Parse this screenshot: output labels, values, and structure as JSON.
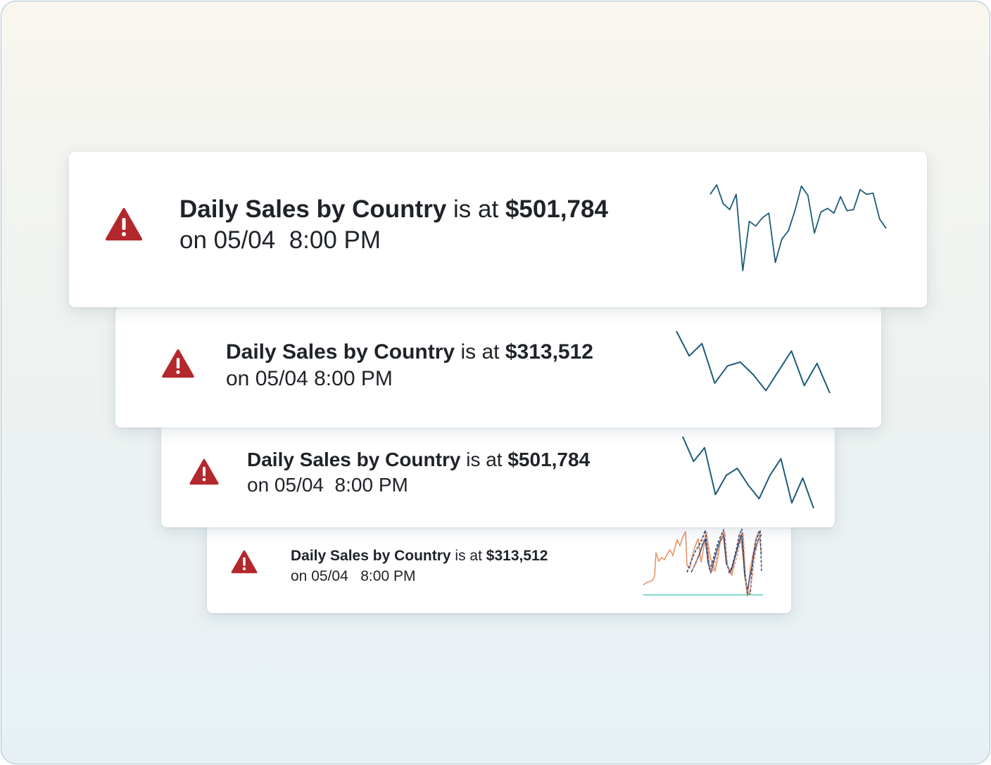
{
  "colors": {
    "alert_red": "#b3282d",
    "spark_line": "#1d5c7a",
    "text": "#1f2328",
    "orange_series": "#e8946b",
    "navy_series": "#3a4f86",
    "teal_baseline": "#7fd8cf"
  },
  "icons": {
    "alert": "warning-triangle-icon"
  },
  "alerts": [
    {
      "metric": "Daily Sales by Country",
      "connector": "is at",
      "value": "$501,784",
      "timestamp": "on 05/04  8:00 PM",
      "sparkline": [
        20,
        12,
        28,
        33,
        20,
        85,
        43,
        47,
        40,
        36,
        78,
        58,
        51,
        34,
        13,
        21,
        53,
        35,
        32,
        36,
        22,
        34,
        33,
        16,
        20,
        19,
        41,
        49
      ]
    },
    {
      "metric": "Daily Sales by Country",
      "connector": "is at",
      "value": "$313,512",
      "timestamp": "on 05/04 8:00 PM",
      "sparkline": [
        10,
        30,
        20,
        52,
        38,
        35,
        45,
        58,
        42,
        26,
        54,
        36,
        60
      ]
    },
    {
      "metric": "Daily Sales by Country",
      "connector": "is at",
      "value": "$501,784",
      "timestamp": "on 05/04  8:00 PM",
      "sparkline": [
        10,
        28,
        18,
        52,
        38,
        33,
        45,
        55,
        38,
        26,
        58,
        40,
        62
      ]
    },
    {
      "metric": "Daily Sales by Country",
      "connector": "is at",
      "value": "$313,512",
      "timestamp": "on 05/04   8:00 PM"
    }
  ]
}
